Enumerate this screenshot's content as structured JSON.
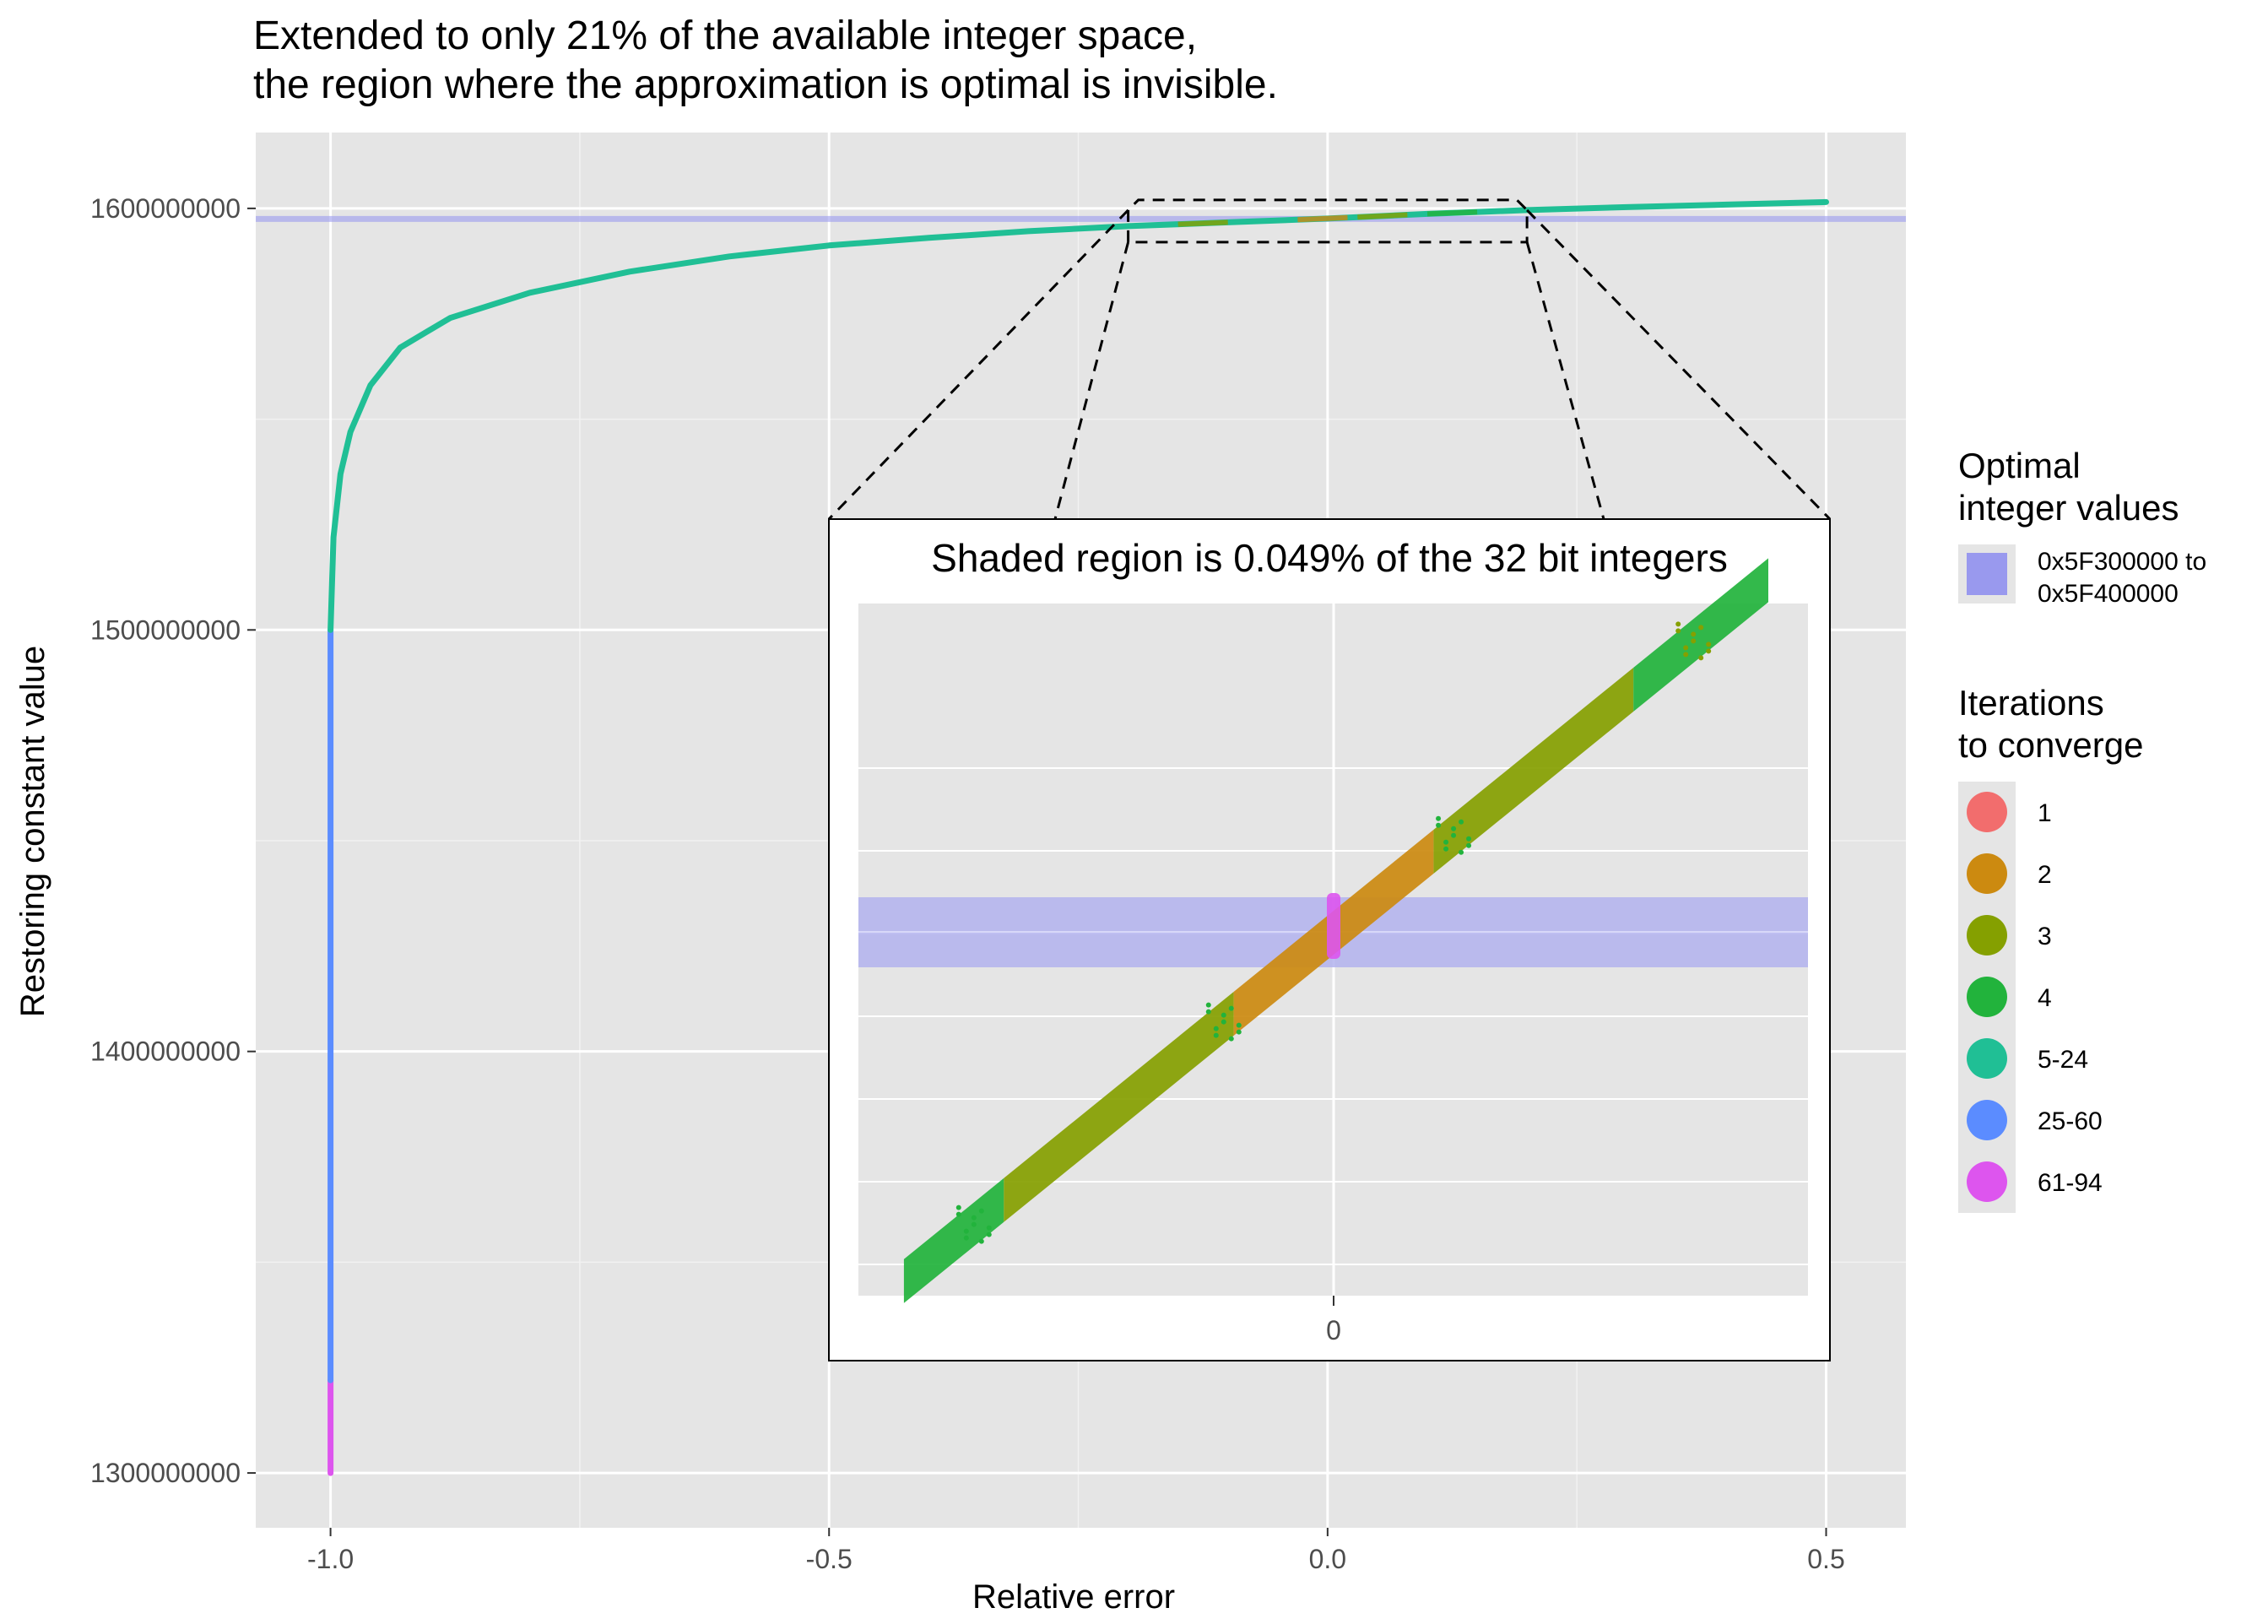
{
  "chart_data": {
    "type": "scatter",
    "title": [
      "Extended to only 21% of the available integer space,",
      "the region where the approximation is optimal is invisible."
    ],
    "xlabel": "Relative error",
    "ylabel": "Restoring constant value",
    "xlim": [
      -1.075,
      0.58
    ],
    "ylim": [
      1287000000,
      1618000000
    ],
    "x_ticks": [
      -1.0,
      -0.5,
      0.0,
      0.5
    ],
    "x_tick_labels": [
      "-1.0",
      "-0.5",
      "0.0",
      "0.5"
    ],
    "y_ticks": [
      1300000000,
      1400000000,
      1500000000,
      1600000000
    ],
    "y_tick_labels": [
      "1300000000",
      "1400000000",
      "1500000000",
      "1600000000"
    ],
    "grid": true,
    "shaded_band": {
      "from": "0x5F300000",
      "to": "0x5F400000",
      "y_from": 1597000000,
      "y_to": 1598000000,
      "color": "#9999ee"
    },
    "series": [
      {
        "name": "61-94",
        "color": "#dd55ee",
        "points": [
          [
            -1.0,
            1300000000
          ],
          [
            -1.0,
            1322000000
          ]
        ]
      },
      {
        "name": "25-60",
        "color": "#5b8cff",
        "points": [
          [
            -1.0,
            1322000000
          ],
          [
            -1.0,
            1500000000
          ]
        ]
      },
      {
        "name": "5-24",
        "color": "#20bf95",
        "points": [
          [
            -1.0,
            1500000000
          ],
          [
            -0.997,
            1522000000
          ],
          [
            -0.99,
            1537000000
          ],
          [
            -0.98,
            1547000000
          ],
          [
            -0.96,
            1558000000
          ],
          [
            -0.93,
            1567000000
          ],
          [
            -0.88,
            1574000000
          ],
          [
            -0.8,
            1580000000
          ],
          [
            -0.7,
            1585000000
          ],
          [
            -0.6,
            1588600000
          ],
          [
            -0.5,
            1591200000
          ],
          [
            -0.4,
            1593000000
          ],
          [
            -0.3,
            1594600000
          ],
          [
            -0.2,
            1595800000
          ],
          [
            -0.1,
            1596700000
          ],
          [
            0.0,
            1597600000
          ],
          [
            0.1,
            1598700000
          ],
          [
            0.2,
            1599600000
          ],
          [
            0.3,
            1600300000
          ],
          [
            0.4,
            1600900000
          ],
          [
            0.5,
            1601500000
          ]
        ]
      },
      {
        "name": "4",
        "color": "#22b33c",
        "points": []
      },
      {
        "name": "3",
        "color": "#85a000",
        "points": []
      },
      {
        "name": "2",
        "color": "#cc8a10",
        "points": []
      },
      {
        "name": "1",
        "color": "#f26d6d",
        "points": []
      }
    ],
    "legend": {
      "position": "right",
      "shade_title": [
        "Optimal",
        "integer values"
      ],
      "shade_label": [
        "0x5F300000 to",
        "0x5F400000"
      ],
      "shade_color": "#9999ee",
      "iter_title": [
        "Iterations",
        "to converge"
      ],
      "iter_items": [
        {
          "label": "1",
          "color": "#f26d6d"
        },
        {
          "label": "2",
          "color": "#cc8a10"
        },
        {
          "label": "3",
          "color": "#85a000"
        },
        {
          "label": "4",
          "color": "#22b33c"
        },
        {
          "label": "5-24",
          "color": "#20bf95"
        },
        {
          "label": "25-60",
          "color": "#5b8cff"
        },
        {
          "label": "61-94",
          "color": "#dd55ee"
        }
      ]
    },
    "inset": {
      "title": "Shaded region is 0.049% of the 32 bit integers",
      "x_tick_label": "0",
      "zoom_box_x": [
        -0.2,
        0.2
      ],
      "zoom_box_y": [
        1592000000,
        1602000000
      ],
      "band": {
        "color": "#b3b3ee"
      },
      "diagonal": {
        "x_from": -0.43,
        "x_to": 0.435,
        "segments": [
          {
            "color": "#22b33c",
            "x_from": -0.43,
            "x_to": -0.33
          },
          {
            "color": "#85a000",
            "x_from": -0.33,
            "x_to": -0.1
          },
          {
            "color": "#cc8a10",
            "x_from": -0.1,
            "x_to": 0.1
          },
          {
            "color": "#85a000",
            "x_from": 0.1,
            "x_to": 0.3
          },
          {
            "color": "#22b33c",
            "x_from": 0.3,
            "x_to": 0.435
          }
        ],
        "center_color": "#dd55ee"
      }
    }
  }
}
